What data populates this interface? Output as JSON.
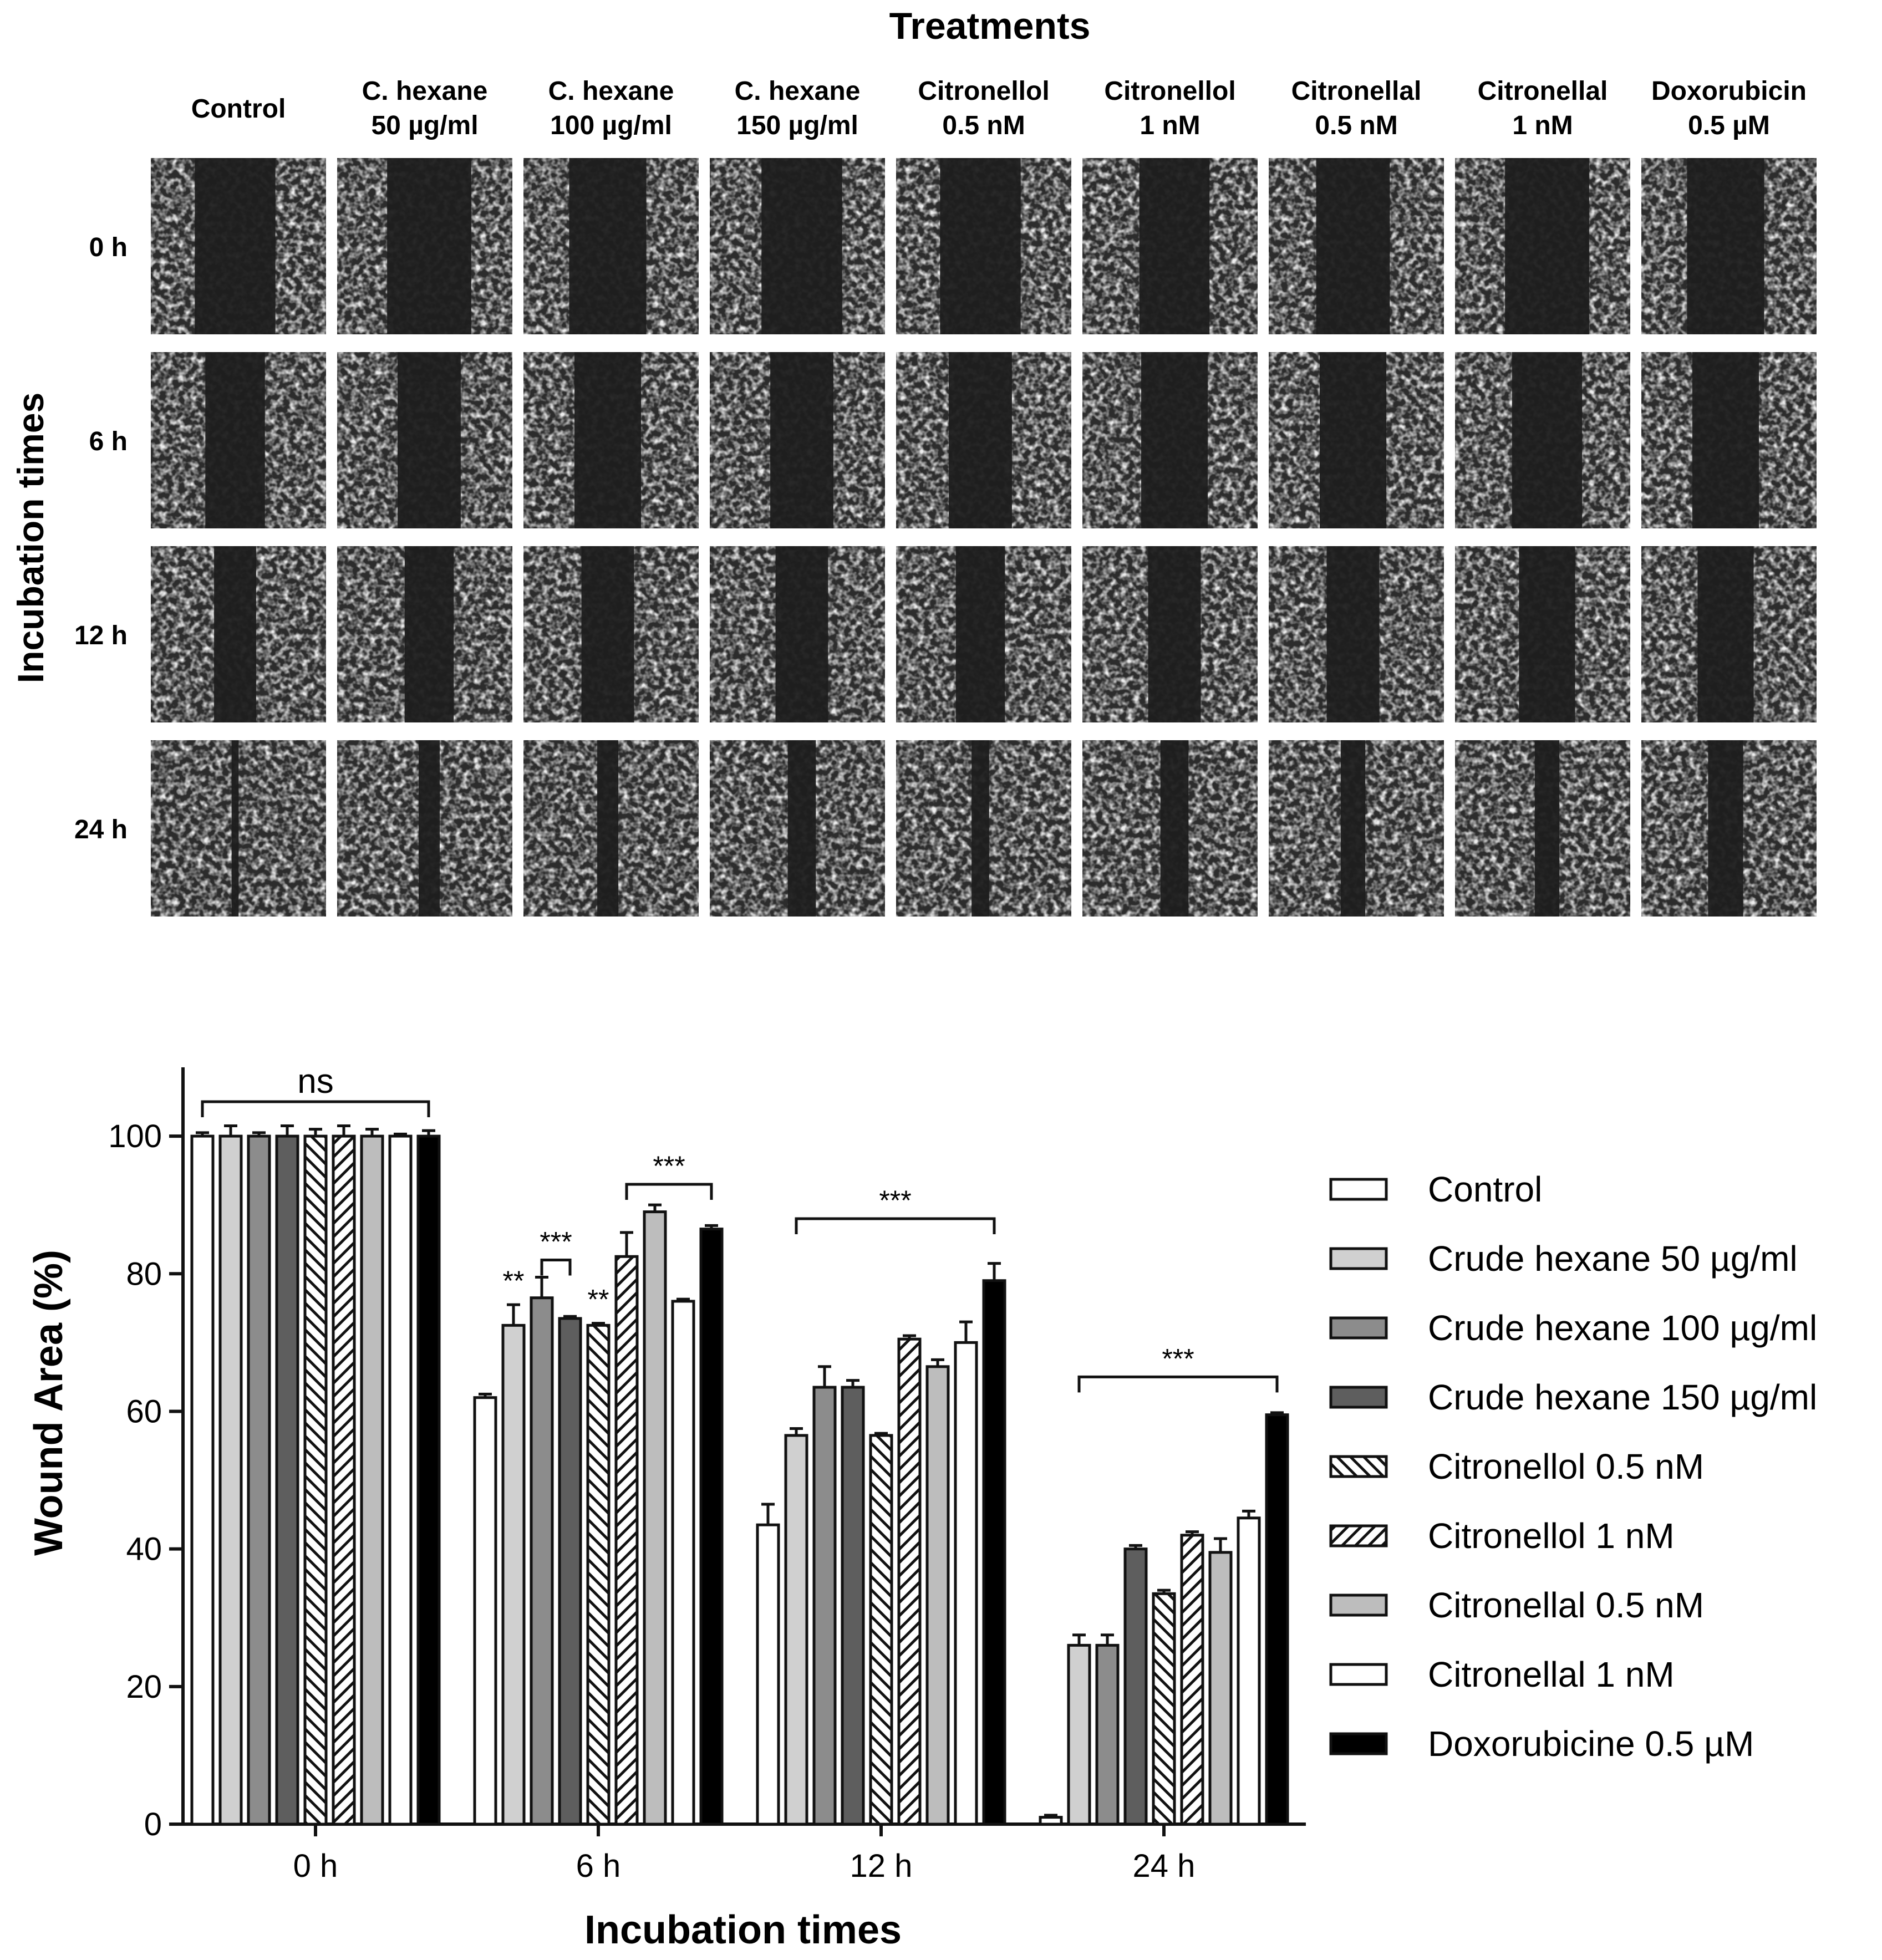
{
  "micrograph_panel": {
    "title": "Treatments",
    "row_axis_label": "Incubation times",
    "column_headers": [
      [
        "Control"
      ],
      [
        "C. hexane",
        "50 µg/ml"
      ],
      [
        "C. hexane",
        "100 µg/ml"
      ],
      [
        "C. hexane",
        "150 µg/ml"
      ],
      [
        "Citronellol",
        "0.5 nM"
      ],
      [
        "Citronellol",
        "1 nM"
      ],
      [
        "Citronellal",
        "0.5 nM"
      ],
      [
        "Citronellal",
        "1 nM"
      ],
      [
        "Doxorubicin",
        "0.5 µM"
      ]
    ],
    "row_labels": [
      "0 h",
      "6 h",
      "12 h",
      "24 h"
    ]
  },
  "chart_data": {
    "type": "bar",
    "xlabel": "Incubation times",
    "ylabel": "Wound Area (%)",
    "ylim": [
      0,
      110
    ],
    "yticks": [
      0,
      20,
      40,
      60,
      80,
      100
    ],
    "categories": [
      "0 h",
      "6 h",
      "12 h",
      "24 h"
    ],
    "legend_position": "right",
    "series": [
      {
        "name": "Control",
        "values": [
          100,
          62,
          43.5,
          1
        ],
        "errors": [
          0.5,
          0.5,
          3,
          0.3
        ],
        "fill": "#ffffff",
        "pattern": "none"
      },
      {
        "name": "Crude hexane 50 µg/ml",
        "values": [
          100,
          72.5,
          56.5,
          26
        ],
        "errors": [
          1.5,
          3,
          1,
          1.5
        ],
        "fill": "#d0d0d0",
        "pattern": "none"
      },
      {
        "name": "Crude hexane 100 µg/ml",
        "values": [
          100,
          76.5,
          63.5,
          26
        ],
        "errors": [
          0.5,
          3,
          3,
          1.5
        ],
        "fill": "#8c8c8c",
        "pattern": "none"
      },
      {
        "name": "Crude hexane 150 µg/ml",
        "values": [
          100,
          73.5,
          63.5,
          40
        ],
        "errors": [
          1.5,
          0.3,
          1,
          0.5
        ],
        "fill": "#5e5e5e",
        "pattern": "none"
      },
      {
        "name": "Citronellol 0.5 nM",
        "values": [
          100,
          72.5,
          56.5,
          33.5
        ],
        "errors": [
          1,
          0.3,
          0.3,
          0.5
        ],
        "fill": "#ffffff",
        "pattern": "back"
      },
      {
        "name": "Citronellol 1 nM",
        "values": [
          100,
          82.5,
          70.5,
          42
        ],
        "errors": [
          1.5,
          3.5,
          0.5,
          0.5
        ],
        "fill": "#ffffff",
        "pattern": "fwd"
      },
      {
        "name": "Citronellal 0.5 nM",
        "values": [
          100,
          89,
          66.5,
          39.5
        ],
        "errors": [
          1,
          1,
          1,
          2
        ],
        "fill": "#bdbdbd",
        "pattern": "none"
      },
      {
        "name": "Citronellal 1 nM",
        "values": [
          100,
          76,
          70,
          44.5
        ],
        "errors": [
          0.3,
          0.3,
          3,
          1
        ],
        "fill": "#ffffff",
        "pattern": "none"
      },
      {
        "name": "Doxorubicine 0.5 µM",
        "values": [
          100,
          86.5,
          79,
          59.5
        ],
        "errors": [
          0.8,
          0.5,
          2.5,
          0.3
        ],
        "fill": "#000000",
        "pattern": "none"
      }
    ],
    "annotations": [
      {
        "text": "ns",
        "type": "bracket",
        "category": 0,
        "from_series": 0,
        "to_series": 8,
        "y": 105
      },
      {
        "text": "**",
        "type": "label",
        "category": 1,
        "series": 1
      },
      {
        "text": "***",
        "type": "bracket",
        "category": 1,
        "from_series": 2,
        "to_series": 3,
        "y": 82
      },
      {
        "text": "**",
        "type": "label",
        "category": 1,
        "series": 4
      },
      {
        "text": "***",
        "type": "bracket",
        "category": 1,
        "from_series": 5,
        "to_series": 8,
        "y": 93
      },
      {
        "text": "***",
        "type": "bracket",
        "category": 2,
        "from_series": 1,
        "to_series": 8,
        "y": 88
      },
      {
        "text": "***",
        "type": "bracket",
        "category": 3,
        "from_series": 1,
        "to_series": 8,
        "y": 65
      }
    ]
  }
}
